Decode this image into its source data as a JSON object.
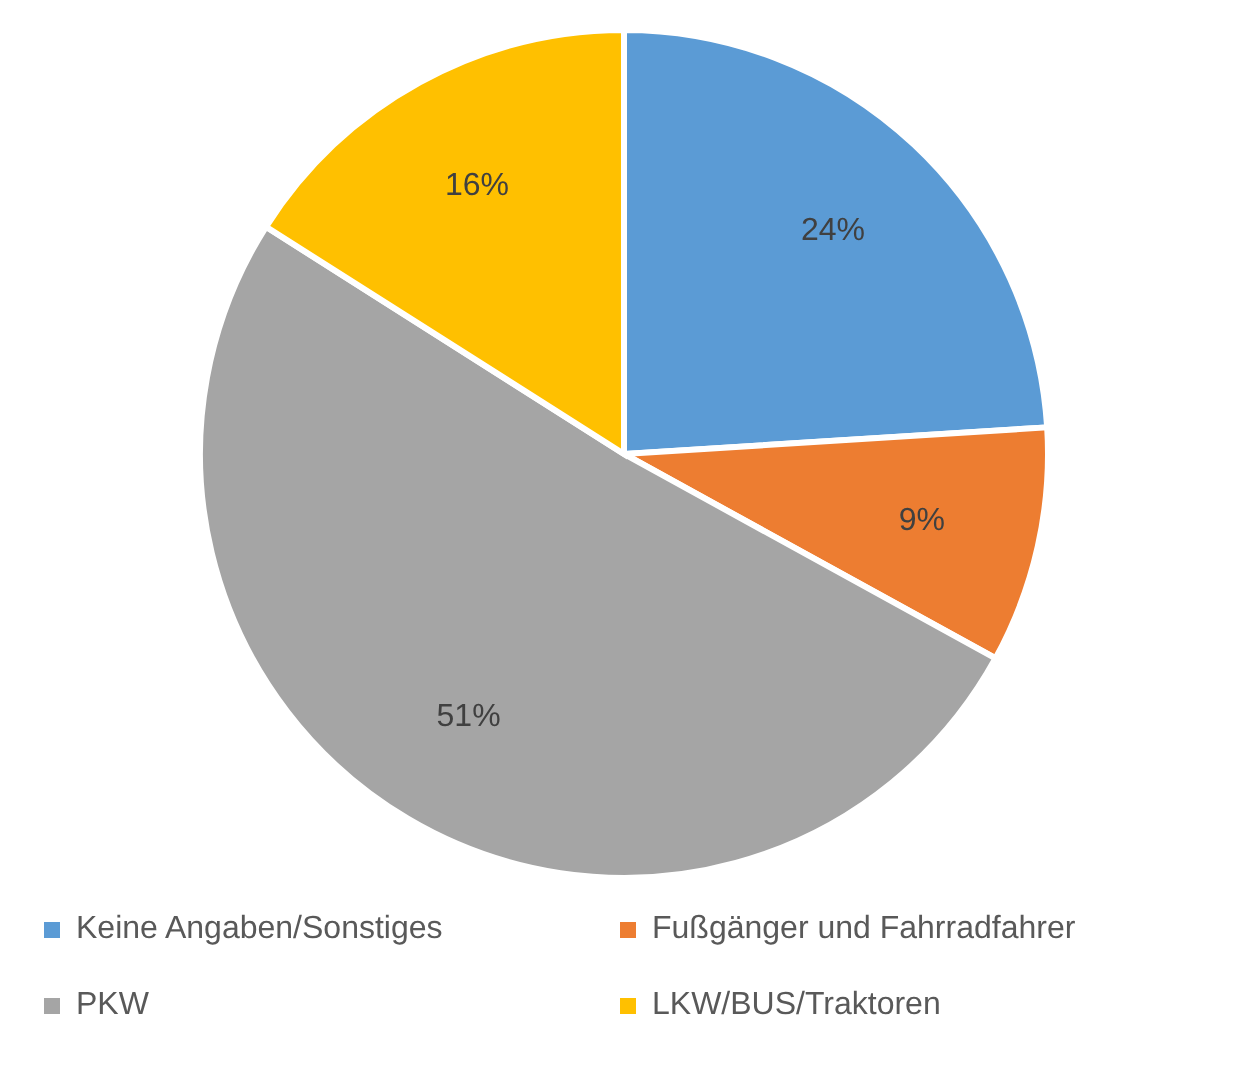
{
  "chart_data": {
    "type": "pie",
    "categories": [
      "Keine Angaben/Sonstiges",
      "Fußgänger und Fahrradfahrer",
      "PKW",
      "LKW/BUS/Traktoren"
    ],
    "values": [
      24,
      9,
      51,
      16
    ],
    "value_labels": [
      "24%",
      "9%",
      "51%",
      "16%"
    ],
    "colors": [
      "#5b9bd5",
      "#ed7d31",
      "#a5a5a5",
      "#ffc000"
    ],
    "legend": "bottom"
  }
}
